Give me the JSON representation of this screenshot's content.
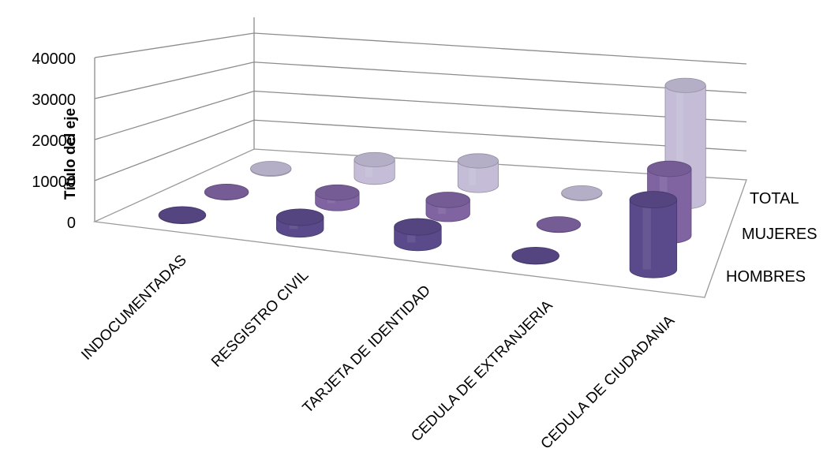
{
  "chart_data": {
    "type": "bar",
    "subtype": "3d-cylinder",
    "ylabel": "Título del eje",
    "ylim": [
      0,
      40000
    ],
    "yticks": [
      "0",
      "10000",
      "20000",
      "30000",
      "40000"
    ],
    "categories": [
      "INDOCUMENTADAS",
      "RESGISTRO CIVIL",
      "TARJETA DE IDENTIDAD",
      "CEDULA DE EXTRANJERIA",
      "CEDULA DE CIUDADANIA"
    ],
    "series": [
      {
        "name": "HOMBRES",
        "color": "#5b4a8b",
        "values": [
          100,
          3000,
          4000,
          100,
          18000
        ]
      },
      {
        "name": "MUJERES",
        "color": "#8064a2",
        "values": [
          100,
          3000,
          4000,
          100,
          19000
        ]
      },
      {
        "name": "TOTAL",
        "color": "#c5bdd8",
        "values": [
          200,
          5600,
          7800,
          200,
          37000
        ]
      }
    ],
    "grid": true
  }
}
